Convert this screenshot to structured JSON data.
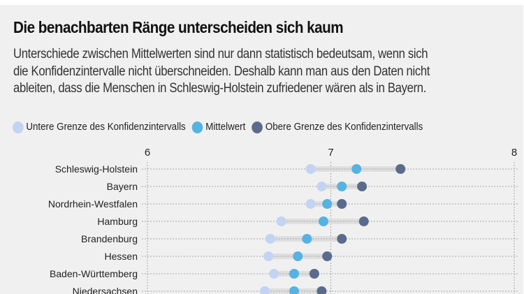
{
  "header": {
    "title": "Die benachbarten Ränge unterscheiden sich kaum",
    "subtitle_lines": [
      "Unterschiede zwischen Mittelwerten sind nur dann statistisch bedeutsam, wenn sich",
      "die Konfidenzintervalle nicht überschneiden. Deshalb kann man aus den Daten nicht",
      "ableiten, dass die Menschen in Schleswig-Holstein zufriedener wären als in Bayern."
    ]
  },
  "legend": [
    {
      "label": "Untere Grenze des Konfidenzintervalls",
      "color": "#c3d3f4"
    },
    {
      "label": "Mittelwert",
      "color": "#56b2e2"
    },
    {
      "label": "Obere Grenze des Konfidenzintervalls",
      "color": "#5a6b8c"
    }
  ],
  "colors": {
    "background": "#f0f0f0",
    "range_bar": "#dcdcdc",
    "gridline": "#a8a8a8"
  },
  "chart_data": {
    "type": "dot-range",
    "title": "Die benachbarten Ränge unterscheiden sich kaum",
    "xlabel": "",
    "ylabel": "",
    "xlim": [
      6,
      8
    ],
    "xticks": [
      6,
      7,
      8
    ],
    "xtick_labels": [
      "6",
      "7",
      "8"
    ],
    "grid": true,
    "legend_position": "top-left",
    "categories": [
      "Schleswig-Holstein",
      "Bayern",
      "Nordrhein-Westfalen",
      "Hamburg",
      "Brandenburg",
      "Hessen",
      "Baden-Württemberg",
      "Niedersachsen"
    ],
    "series": [
      {
        "name": "Untere Grenze des Konfidenzintervalls",
        "values": [
          6.89,
          6.95,
          6.89,
          6.73,
          6.67,
          6.66,
          6.69,
          6.64
        ]
      },
      {
        "name": "Mittelwert",
        "values": [
          7.14,
          7.06,
          6.98,
          6.96,
          6.87,
          6.82,
          6.8,
          6.8
        ]
      },
      {
        "name": "Obere Grenze des Konfidenzintervalls",
        "values": [
          7.38,
          7.17,
          7.06,
          7.18,
          7.06,
          6.98,
          6.91,
          6.95
        ]
      }
    ]
  }
}
